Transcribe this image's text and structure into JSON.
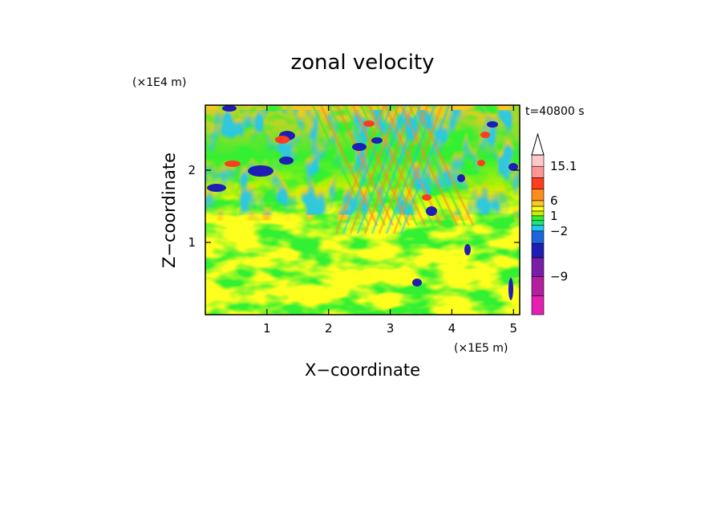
{
  "chart_data": {
    "type": "heatmap",
    "title": "zonal velocity",
    "xlabel": "X−coordinate",
    "ylabel": "Z−coordinate",
    "x_unit": "(×1E5 m)",
    "y_unit": "(×1E4 m)",
    "time_label": "t=40800 s",
    "xlim": [
      0,
      5.1
    ],
    "ylim": [
      0,
      2.9
    ],
    "x_ticks": [
      1,
      2,
      3,
      4,
      5
    ],
    "y_ticks": [
      1,
      2
    ],
    "colorbar": {
      "levels": [
        -15,
        -12,
        -9,
        -6,
        -4,
        -2,
        -1,
        0,
        1,
        2,
        3,
        6,
        9,
        12,
        15.1
      ],
      "labels": [
        "15.1",
        "6",
        "1",
        "−2",
        "−9"
      ],
      "label_values": [
        15.1,
        6,
        1,
        -2,
        -9
      ],
      "colors": [
        "#e61eb4",
        "#b41ea0",
        "#7a1ea8",
        "#1e1eb4",
        "#1e64dc",
        "#1ec8f0",
        "#1ee678",
        "#32f032",
        "#c8f000",
        "#ffff1e",
        "#ffc81e",
        "#ff8c1e",
        "#ff3c1e",
        "#ff9696",
        "#ffc8c8"
      ],
      "extend": "max"
    }
  }
}
